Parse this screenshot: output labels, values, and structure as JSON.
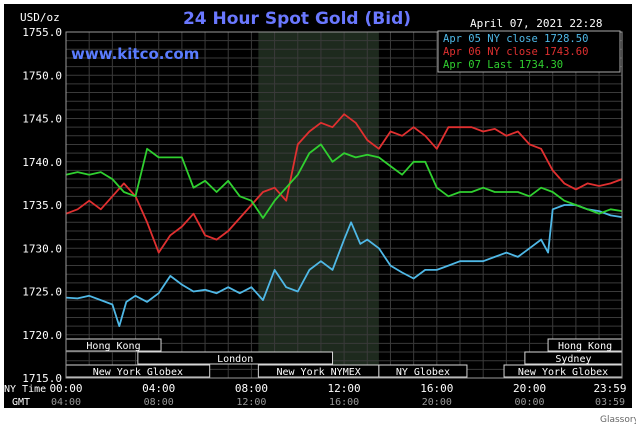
{
  "header": {
    "unit": "USD/oz",
    "title": "24 Hour Spot Gold (Bid)",
    "datetime": "April 07, 2021 22:28",
    "site": "www.kitco.com"
  },
  "legend": [
    {
      "label": "Apr 05 NY close 1728.50",
      "color": "#4fb8e6"
    },
    {
      "label": "Apr 06 NY close 1743.60",
      "color": "#e03030"
    },
    {
      "label": "Apr 07 Last 1734.30",
      "color": "#30d030"
    }
  ],
  "colors": {
    "background": "#000000",
    "grid": "#404040",
    "text": "#ffffff",
    "title": "#6a78ff",
    "site": "#5a7cff",
    "session_box": "#d8d8d8",
    "highlight": "#1e2a1e"
  },
  "axis": {
    "y_ticks": [
      "1755.0",
      "1750.0",
      "1745.0",
      "1740.0",
      "1735.0",
      "1730.0",
      "1725.0",
      "1720.0",
      "1715.0"
    ],
    "ny_label": "NY Time",
    "gmt_label": "GMT",
    "x_ticks_ny": [
      "00:00",
      "04:00",
      "08:00",
      "12:00",
      "16:00",
      "20:00",
      "23:59"
    ],
    "x_ticks_gmt": [
      "04:00",
      "08:00",
      "12:00",
      "16:00",
      "20:00",
      "00:00",
      "03:59"
    ]
  },
  "sessions": [
    {
      "label": "Hong Kong",
      "start": -0.5,
      "end": 4.1
    },
    {
      "label": "Hong Kong",
      "start": 20.8,
      "end": 23.99
    },
    {
      "label": "London",
      "start": 3.1,
      "end": 11.5
    },
    {
      "label": "Sydney",
      "start": 19.8,
      "end": 23.99
    },
    {
      "label": "New York Globex",
      "start": 0,
      "end": 6.2
    },
    {
      "label": "New York NYMEX",
      "start": 8.3,
      "end": 13.5
    },
    {
      "label": "NY Globex",
      "start": 13.5,
      "end": 17.3
    },
    {
      "label": "New York Globex",
      "start": 18.9,
      "end": 23.99
    }
  ],
  "watermark": "Glassory",
  "chart_data": {
    "type": "line",
    "title": "24 Hour Spot Gold (Bid)",
    "ylabel": "USD/oz",
    "xlabel": "NY Time",
    "xlim": [
      0,
      23.99
    ],
    "ylim": [
      1715,
      1755
    ],
    "highlight_range": [
      8.3,
      13.5
    ],
    "grid": true,
    "legend_position": "top-right",
    "series": [
      {
        "name": "Apr 05 NY close 1728.50",
        "color": "#4fb8e6",
        "x": [
          0,
          0.5,
          1,
          1.5,
          2,
          2.3,
          2.6,
          3,
          3.5,
          4,
          4.5,
          5,
          5.5,
          6,
          6.5,
          7,
          7.5,
          8,
          8.5,
          9,
          9.5,
          10,
          10.5,
          11,
          11.5,
          12,
          12.3,
          12.7,
          13,
          13.5,
          14,
          14.5,
          15,
          15.5,
          16,
          16.5,
          17,
          17.5,
          18,
          18.5,
          19,
          19.5,
          20,
          20.5,
          20.8,
          21,
          21.5,
          22,
          22.5,
          23,
          23.5,
          23.99
        ],
        "y": [
          1724.3,
          1724.2,
          1724.5,
          1724.0,
          1723.5,
          1721.0,
          1723.8,
          1724.5,
          1723.8,
          1724.8,
          1726.8,
          1725.8,
          1725.0,
          1725.2,
          1724.8,
          1725.5,
          1724.8,
          1725.5,
          1724.0,
          1727.5,
          1725.5,
          1725.0,
          1727.5,
          1728.5,
          1727.5,
          1731.0,
          1733.0,
          1730.5,
          1731.0,
          1730.0,
          1728.0,
          1727.2,
          1726.5,
          1727.5,
          1727.5,
          1728.0,
          1728.5,
          1728.5,
          1728.5,
          1729.0,
          1729.5,
          1729.0,
          1730.0,
          1731.0,
          1729.5,
          1734.5,
          1735.0,
          1735.0,
          1734.5,
          1734.3,
          1733.8,
          1733.6
        ]
      },
      {
        "name": "Apr 06 NY close 1743.60",
        "color": "#e03030",
        "x": [
          0,
          0.5,
          1,
          1.5,
          2,
          2.5,
          3,
          3.5,
          4,
          4.5,
          5,
          5.5,
          6,
          6.5,
          7,
          7.5,
          8,
          8.5,
          9,
          9.5,
          10,
          10.5,
          11,
          11.5,
          12,
          12.5,
          13,
          13.5,
          14,
          14.5,
          15,
          15.5,
          16,
          16.5,
          17,
          17.5,
          18,
          18.5,
          19,
          19.5,
          20,
          20.5,
          21,
          21.5,
          22,
          22.5,
          23,
          23.5,
          23.99
        ],
        "y": [
          1734.0,
          1734.5,
          1735.5,
          1734.5,
          1736.0,
          1737.5,
          1736.0,
          1733.0,
          1729.5,
          1731.5,
          1732.5,
          1734.0,
          1731.5,
          1731.0,
          1732.0,
          1733.5,
          1735.0,
          1736.5,
          1737.0,
          1735.5,
          1742.0,
          1743.5,
          1744.5,
          1744.0,
          1745.5,
          1744.5,
          1742.5,
          1741.5,
          1743.5,
          1743.0,
          1744.0,
          1743.0,
          1741.5,
          1744.0,
          1744.0,
          1744.0,
          1743.5,
          1743.8,
          1743.0,
          1743.5,
          1742.0,
          1741.5,
          1739.0,
          1737.5,
          1736.8,
          1737.5,
          1737.2,
          1737.5,
          1738.0
        ]
      },
      {
        "name": "Apr 07 Last 1734.30",
        "color": "#30d030",
        "x": [
          0,
          0.5,
          1,
          1.5,
          2,
          2.5,
          3,
          3.5,
          4,
          4.5,
          5,
          5.5,
          6,
          6.5,
          7,
          7.5,
          8,
          8.5,
          9,
          9.5,
          10,
          10.5,
          11,
          11.5,
          12,
          12.5,
          13,
          13.5,
          14,
          14.5,
          15,
          15.5,
          16,
          16.5,
          17,
          17.5,
          18,
          18.5,
          19,
          19.5,
          20,
          20.5,
          21,
          21.5,
          22,
          22.5,
          23,
          23.5,
          23.99
        ],
        "y": [
          1738.5,
          1738.8,
          1738.5,
          1738.8,
          1738.0,
          1736.5,
          1736.0,
          1741.5,
          1740.5,
          1740.5,
          1740.5,
          1737.0,
          1737.8,
          1736.5,
          1737.8,
          1736.0,
          1735.5,
          1733.5,
          1735.5,
          1737.0,
          1738.5,
          1741.0,
          1742.0,
          1740.0,
          1741.0,
          1740.5,
          1740.8,
          1740.5,
          1739.5,
          1738.5,
          1740.0,
          1740.0,
          1737.0,
          1736.0,
          1736.5,
          1736.5,
          1737.0,
          1736.5,
          1736.5,
          1736.5,
          1736.0,
          1737.0,
          1736.5,
          1735.5,
          1735.0,
          1734.5,
          1734.0,
          1734.5,
          1734.3
        ]
      }
    ]
  }
}
